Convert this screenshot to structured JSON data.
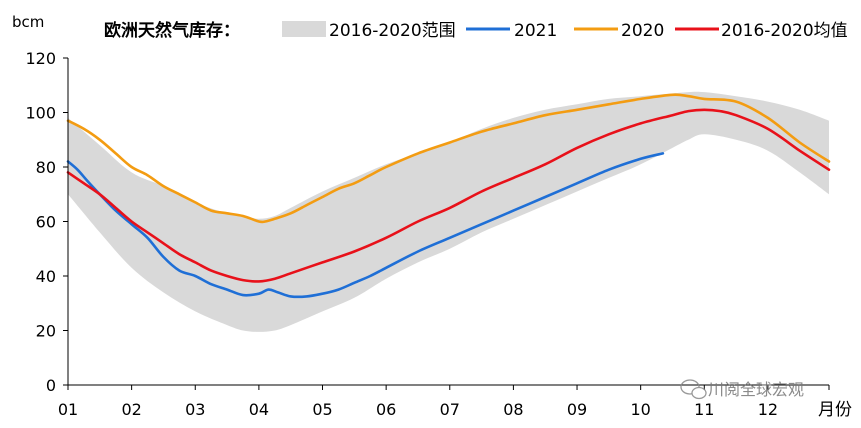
{
  "chart_data": {
    "type": "area",
    "title": "欧洲天然气库存：",
    "ylabel": "bcm",
    "xlabel": "月份",
    "ylim": [
      0,
      120
    ],
    "yticks": [
      0,
      20,
      40,
      60,
      80,
      100,
      120
    ],
    "xlim": [
      1,
      12.96
    ],
    "xtick_labels": [
      "01",
      "02",
      "03",
      "04",
      "05",
      "06",
      "07",
      "08",
      "09",
      "10",
      "11",
      "12"
    ],
    "grid": false,
    "legend_position": "top",
    "series": [
      {
        "name": "2016-2020范围",
        "type": "band",
        "color": "#d9d9d9",
        "x": [
          1.0,
          1.5,
          2.0,
          2.5,
          3.0,
          3.5,
          3.75,
          4.0,
          4.25,
          4.5,
          5.0,
          5.5,
          6.0,
          6.5,
          7.0,
          7.5,
          8.0,
          8.5,
          9.0,
          9.5,
          10.0,
          10.5,
          10.75,
          11.0,
          11.5,
          12.0,
          12.5,
          12.96
        ],
        "lower": [
          70,
          56,
          43,
          34,
          27,
          22,
          20,
          19.5,
          20,
          22,
          27,
          32,
          39,
          45,
          50,
          56,
          61,
          66,
          71,
          76,
          81,
          87,
          90,
          92,
          90,
          86,
          78,
          70
        ],
        "upper": [
          98,
          88,
          78,
          73,
          67,
          63,
          62,
          61,
          62,
          65,
          71,
          76,
          81,
          85,
          89,
          94,
          98,
          101,
          103,
          105,
          106,
          107,
          107.5,
          107.5,
          106,
          104,
          101,
          97
        ]
      },
      {
        "name": "2021",
        "color": "#1f6fd6",
        "x": [
          1.0,
          1.15,
          1.3,
          1.5,
          1.75,
          2.0,
          2.25,
          2.5,
          2.75,
          3.0,
          3.25,
          3.5,
          3.75,
          4.0,
          4.15,
          4.3,
          4.5,
          4.75,
          5.0,
          5.25,
          5.5,
          5.75,
          6.0,
          6.5,
          7.0,
          7.5,
          8.0,
          8.5,
          9.0,
          9.5,
          10.0,
          10.35
        ],
        "values": [
          82,
          79,
          75,
          70,
          64,
          59,
          54,
          47,
          42,
          40,
          37,
          35,
          33,
          33.5,
          35,
          34,
          32.5,
          32.5,
          33.5,
          35,
          37.5,
          40,
          43,
          49,
          54,
          59,
          64,
          69,
          74,
          79,
          83,
          85
        ]
      },
      {
        "name": "2020",
        "color": "#f39c12",
        "x": [
          1.0,
          1.25,
          1.5,
          1.75,
          2.0,
          2.25,
          2.5,
          2.75,
          3.0,
          3.25,
          3.5,
          3.75,
          4.0,
          4.1,
          4.25,
          4.5,
          4.75,
          5.0,
          5.25,
          5.5,
          5.75,
          6.0,
          6.5,
          7.0,
          7.5,
          8.0,
          8.5,
          9.0,
          9.5,
          10.0,
          10.5,
          10.75,
          11.0,
          11.5,
          12.0,
          12.5,
          12.96
        ],
        "values": [
          97,
          94,
          90,
          85,
          80,
          77,
          73,
          70,
          67,
          64,
          63,
          62,
          60,
          60,
          61,
          63,
          66,
          69,
          72,
          74,
          77,
          80,
          85,
          89,
          93,
          96,
          99,
          101,
          103,
          105,
          106.5,
          106,
          105,
          104,
          98,
          89,
          82
        ]
      },
      {
        "name": "2016-2020均值",
        "color": "#e8111a",
        "x": [
          1.0,
          1.25,
          1.5,
          1.75,
          2.0,
          2.25,
          2.5,
          2.75,
          3.0,
          3.25,
          3.5,
          3.75,
          4.0,
          4.25,
          4.5,
          4.75,
          5.0,
          5.5,
          6.0,
          6.5,
          7.0,
          7.5,
          8.0,
          8.5,
          9.0,
          9.5,
          10.0,
          10.5,
          10.75,
          11.0,
          11.25,
          11.5,
          12.0,
          12.5,
          12.96
        ],
        "values": [
          78,
          74,
          70,
          65,
          60,
          56,
          52,
          48,
          45,
          42,
          40,
          38.5,
          38,
          39,
          41,
          43,
          45,
          49,
          54,
          60,
          65,
          71,
          76,
          81,
          87,
          92,
          96,
          99,
          100.5,
          101,
          100.5,
          99,
          94,
          86,
          79
        ]
      }
    ]
  },
  "watermark": {
    "text": "川阅全球宏观",
    "icon": "wechat-icon"
  }
}
